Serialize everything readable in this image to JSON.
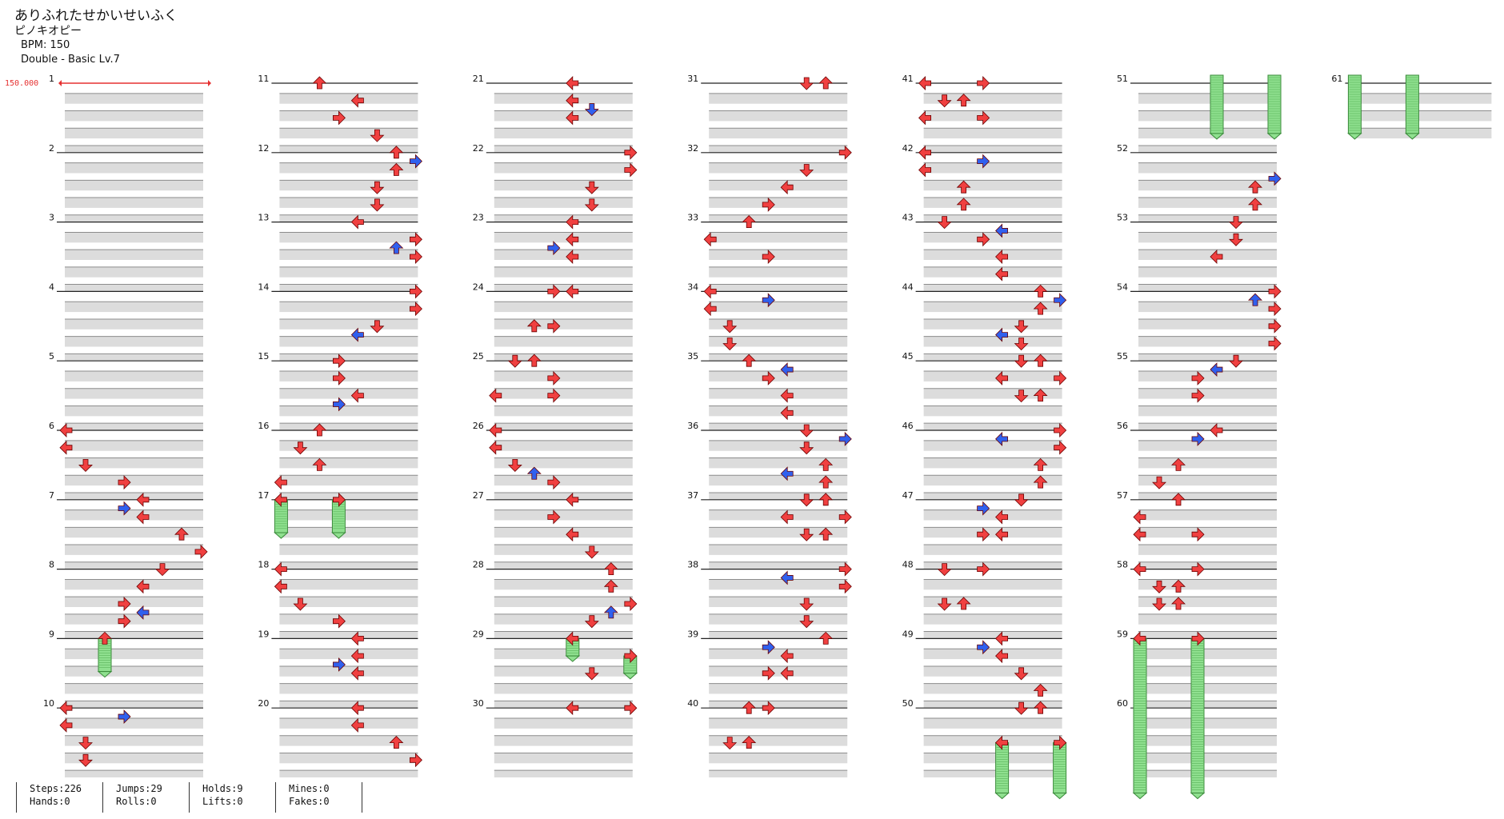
{
  "header": {
    "title": "ありふれたせかいせいふく",
    "artist": "ピノキオピー",
    "bpm": "BPM: 150",
    "difficulty": "Double - Basic  Lv.7",
    "bpm_marker": "150.000"
  },
  "colors": {
    "red_arrow": "#f04040",
    "blue_arrow": "#3060ee",
    "hold_green": "#8fe08f",
    "band_gray": "#dcdcdc",
    "bpm_marker": "#e53030"
  },
  "measure_count": 61,
  "measure_labels": [
    "1",
    "2",
    "3",
    "4",
    "5",
    "6",
    "7",
    "8",
    "9",
    "10",
    "11",
    "12",
    "13",
    "14",
    "15",
    "16",
    "17",
    "18",
    "19",
    "20",
    "21",
    "22",
    "23",
    "24",
    "25",
    "26",
    "27",
    "28",
    "29",
    "30",
    "31",
    "32",
    "33",
    "34",
    "35",
    "36",
    "37",
    "38",
    "39",
    "40",
    "41",
    "42",
    "43",
    "44",
    "45",
    "46",
    "47",
    "48",
    "49",
    "50",
    "51",
    "52",
    "53",
    "54",
    "55",
    "56",
    "57",
    "58",
    "59",
    "60",
    "61"
  ],
  "notes": [
    {
      "m": 6,
      "b": 0,
      "l": 0,
      "c": "r"
    },
    {
      "m": 6,
      "b": 1,
      "l": 0,
      "c": "r"
    },
    {
      "m": 6,
      "b": 2,
      "l": 1,
      "c": "r"
    },
    {
      "m": 6,
      "b": 3,
      "l": 3,
      "c": "r"
    },
    {
      "m": 7,
      "b": 0,
      "l": 4,
      "c": "r"
    },
    {
      "m": 7,
      "b": 0.5,
      "l": 3,
      "c": "b"
    },
    {
      "m": 7,
      "b": 1,
      "l": 4,
      "c": "r"
    },
    {
      "m": 7,
      "b": 2,
      "l": 6,
      "c": "r"
    },
    {
      "m": 7,
      "b": 3,
      "l": 7,
      "c": "r"
    },
    {
      "m": 8,
      "b": 0,
      "l": 5,
      "c": "r"
    },
    {
      "m": 8,
      "b": 1,
      "l": 4,
      "c": "r"
    },
    {
      "m": 8,
      "b": 2,
      "l": 3,
      "c": "r"
    },
    {
      "m": 8,
      "b": 2.5,
      "l": 4,
      "c": "b"
    },
    {
      "m": 8,
      "b": 3,
      "l": 3,
      "c": "r"
    },
    {
      "m": 9,
      "b": 0,
      "l": 2,
      "c": "r",
      "hold": 1.9
    },
    {
      "m": 10,
      "b": 0,
      "l": 0,
      "c": "r"
    },
    {
      "m": 10,
      "b": 0.5,
      "l": 3,
      "c": "b"
    },
    {
      "m": 10,
      "b": 1,
      "l": 0,
      "c": "r"
    },
    {
      "m": 10,
      "b": 2,
      "l": 1,
      "c": "r"
    },
    {
      "m": 10,
      "b": 3,
      "l": 1,
      "c": "r"
    },
    {
      "m": 11,
      "b": 0,
      "l": 2,
      "c": "r"
    },
    {
      "m": 11,
      "b": 1,
      "l": 4,
      "c": "r"
    },
    {
      "m": 11,
      "b": 2,
      "l": 3,
      "c": "r"
    },
    {
      "m": 11,
      "b": 3,
      "l": 5,
      "c": "r"
    },
    {
      "m": 12,
      "b": 0,
      "l": 6,
      "c": "r"
    },
    {
      "m": 12,
      "b": 0.5,
      "l": 7,
      "c": "b"
    },
    {
      "m": 12,
      "b": 1,
      "l": 6,
      "c": "r"
    },
    {
      "m": 12,
      "b": 2,
      "l": 5,
      "c": "r"
    },
    {
      "m": 12,
      "b": 3,
      "l": 5,
      "c": "r"
    },
    {
      "m": 13,
      "b": 0,
      "l": 4,
      "c": "r"
    },
    {
      "m": 13,
      "b": 1,
      "l": 7,
      "c": "r"
    },
    {
      "m": 13,
      "b": 1.5,
      "l": 6,
      "c": "b"
    },
    {
      "m": 13,
      "b": 2,
      "l": 7,
      "c": "r"
    },
    {
      "m": 14,
      "b": 0,
      "l": 7,
      "c": "r"
    },
    {
      "m": 14,
      "b": 1,
      "l": 7,
      "c": "r"
    },
    {
      "m": 14,
      "b": 2,
      "l": 5,
      "c": "r"
    },
    {
      "m": 14,
      "b": 2.5,
      "l": 4,
      "c": "b"
    },
    {
      "m": 15,
      "b": 0,
      "l": 3,
      "c": "r"
    },
    {
      "m": 15,
      "b": 1,
      "l": 3,
      "c": "r"
    },
    {
      "m": 15,
      "b": 2,
      "l": 4,
      "c": "r"
    },
    {
      "m": 15,
      "b": 2.5,
      "l": 3,
      "c": "b"
    },
    {
      "m": 16,
      "b": 0,
      "l": 2,
      "c": "r"
    },
    {
      "m": 16,
      "b": 1,
      "l": 1,
      "c": "r"
    },
    {
      "m": 16,
      "b": 2,
      "l": 2,
      "c": "r"
    },
    {
      "m": 16,
      "b": 3,
      "l": 0,
      "c": "r"
    },
    {
      "m": 17,
      "b": 0,
      "l": 0,
      "c": "r",
      "hold": 1.9
    },
    {
      "m": 17,
      "b": 0,
      "l": 3,
      "c": "r",
      "hold": 1.9
    },
    {
      "m": 18,
      "b": 0,
      "l": 0,
      "c": "r"
    },
    {
      "m": 18,
      "b": 1,
      "l": 0,
      "c": "r"
    },
    {
      "m": 18,
      "b": 2,
      "l": 1,
      "c": "r"
    },
    {
      "m": 18,
      "b": 3,
      "l": 3,
      "c": "r"
    },
    {
      "m": 19,
      "b": 0,
      "l": 4,
      "c": "r"
    },
    {
      "m": 19,
      "b": 1,
      "l": 4,
      "c": "r"
    },
    {
      "m": 19,
      "b": 1.5,
      "l": 3,
      "c": "b"
    },
    {
      "m": 19,
      "b": 2,
      "l": 4,
      "c": "r"
    },
    {
      "m": 20,
      "b": 0,
      "l": 4,
      "c": "r"
    },
    {
      "m": 20,
      "b": 1,
      "l": 4,
      "c": "r"
    },
    {
      "m": 20,
      "b": 2,
      "l": 6,
      "c": "r"
    },
    {
      "m": 20,
      "b": 3,
      "l": 7,
      "c": "r"
    },
    {
      "m": 21,
      "b": 0,
      "l": 4,
      "c": "r"
    },
    {
      "m": 21,
      "b": 1,
      "l": 4,
      "c": "r"
    },
    {
      "m": 21,
      "b": 1.5,
      "l": 5,
      "c": "b"
    },
    {
      "m": 21,
      "b": 2,
      "l": 4,
      "c": "r"
    },
    {
      "m": 22,
      "b": 0,
      "l": 7,
      "c": "r"
    },
    {
      "m": 22,
      "b": 1,
      "l": 7,
      "c": "r"
    },
    {
      "m": 22,
      "b": 2,
      "l": 5,
      "c": "r"
    },
    {
      "m": 22,
      "b": 3,
      "l": 5,
      "c": "r"
    },
    {
      "m": 23,
      "b": 0,
      "l": 4,
      "c": "r"
    },
    {
      "m": 23,
      "b": 1,
      "l": 4,
      "c": "r"
    },
    {
      "m": 23,
      "b": 1.5,
      "l": 3,
      "c": "b"
    },
    {
      "m": 23,
      "b": 2,
      "l": 4,
      "c": "r"
    },
    {
      "m": 24,
      "b": 0,
      "l": 3,
      "c": "r"
    },
    {
      "m": 24,
      "b": 0,
      "l": 4,
      "c": "r"
    },
    {
      "m": 24,
      "b": 2,
      "l": 2,
      "c": "r"
    },
    {
      "m": 24,
      "b": 2,
      "l": 3,
      "c": "r"
    },
    {
      "m": 25,
      "b": 0,
      "l": 1,
      "c": "r"
    },
    {
      "m": 25,
      "b": 0,
      "l": 2,
      "c": "r"
    },
    {
      "m": 25,
      "b": 1,
      "l": 3,
      "c": "r"
    },
    {
      "m": 25,
      "b": 2,
      "l": 0,
      "c": "r"
    },
    {
      "m": 25,
      "b": 2,
      "l": 3,
      "c": "r"
    },
    {
      "m": 26,
      "b": 0,
      "l": 0,
      "c": "r"
    },
    {
      "m": 26,
      "b": 1,
      "l": 0,
      "c": "r"
    },
    {
      "m": 26,
      "b": 2,
      "l": 1,
      "c": "r"
    },
    {
      "m": 26,
      "b": 2.5,
      "l": 2,
      "c": "b"
    },
    {
      "m": 26,
      "b": 3,
      "l": 3,
      "c": "r"
    },
    {
      "m": 27,
      "b": 0,
      "l": 4,
      "c": "r"
    },
    {
      "m": 27,
      "b": 1,
      "l": 3,
      "c": "r"
    },
    {
      "m": 27,
      "b": 2,
      "l": 4,
      "c": "r"
    },
    {
      "m": 27,
      "b": 3,
      "l": 5,
      "c": "r"
    },
    {
      "m": 28,
      "b": 0,
      "l": 6,
      "c": "r"
    },
    {
      "m": 28,
      "b": 1,
      "l": 6,
      "c": "r"
    },
    {
      "m": 28,
      "b": 2,
      "l": 7,
      "c": "r"
    },
    {
      "m": 28,
      "b": 2.5,
      "l": 6,
      "c": "b"
    },
    {
      "m": 28,
      "b": 3,
      "l": 5,
      "c": "r"
    },
    {
      "m": 29,
      "b": 0,
      "l": 4,
      "c": "r",
      "hold": 1.0
    },
    {
      "m": 29,
      "b": 1,
      "l": 7,
      "c": "r",
      "hold": 1.0
    },
    {
      "m": 29,
      "b": 2,
      "l": 5,
      "c": "r"
    },
    {
      "m": 30,
      "b": 0,
      "l": 4,
      "c": "r"
    },
    {
      "m": 30,
      "b": 0,
      "l": 7,
      "c": "r"
    },
    {
      "m": 31,
      "b": 0,
      "l": 5,
      "c": "r"
    },
    {
      "m": 31,
      "b": 0,
      "l": 6,
      "c": "r"
    },
    {
      "m": 32,
      "b": 0,
      "l": 7,
      "c": "r"
    },
    {
      "m": 32,
      "b": 1,
      "l": 5,
      "c": "r"
    },
    {
      "m": 32,
      "b": 2,
      "l": 4,
      "c": "r"
    },
    {
      "m": 32,
      "b": 3,
      "l": 3,
      "c": "r"
    },
    {
      "m": 33,
      "b": 0,
      "l": 2,
      "c": "r"
    },
    {
      "m": 33,
      "b": 1,
      "l": 0,
      "c": "r"
    },
    {
      "m": 33,
      "b": 2,
      "l": 3,
      "c": "r"
    },
    {
      "m": 34,
      "b": 0,
      "l": 0,
      "c": "r"
    },
    {
      "m": 34,
      "b": 0.5,
      "l": 3,
      "c": "b"
    },
    {
      "m": 34,
      "b": 1,
      "l": 0,
      "c": "r"
    },
    {
      "m": 34,
      "b": 2,
      "l": 1,
      "c": "r"
    },
    {
      "m": 34,
      "b": 3,
      "l": 1,
      "c": "r"
    },
    {
      "m": 35,
      "b": 0,
      "l": 2,
      "c": "r"
    },
    {
      "m": 35,
      "b": 0.5,
      "l": 4,
      "c": "b"
    },
    {
      "m": 35,
      "b": 1,
      "l": 3,
      "c": "r"
    },
    {
      "m": 35,
      "b": 2,
      "l": 4,
      "c": "r"
    },
    {
      "m": 35,
      "b": 3,
      "l": 4,
      "c": "r"
    },
    {
      "m": 36,
      "b": 0,
      "l": 5,
      "c": "r"
    },
    {
      "m": 36,
      "b": 0.5,
      "l": 7,
      "c": "b"
    },
    {
      "m": 36,
      "b": 1,
      "l": 5,
      "c": "r"
    },
    {
      "m": 36,
      "b": 2,
      "l": 6,
      "c": "r"
    },
    {
      "m": 36,
      "b": 2.5,
      "l": 4,
      "c": "b"
    },
    {
      "m": 36,
      "b": 3,
      "l": 6,
      "c": "r"
    },
    {
      "m": 37,
      "b": 0,
      "l": 5,
      "c": "r"
    },
    {
      "m": 37,
      "b": 0,
      "l": 6,
      "c": "r"
    },
    {
      "m": 37,
      "b": 1,
      "l": 4,
      "c": "r"
    },
    {
      "m": 37,
      "b": 1,
      "l": 7,
      "c": "r"
    },
    {
      "m": 37,
      "b": 2,
      "l": 5,
      "c": "r"
    },
    {
      "m": 37,
      "b": 2,
      "l": 6,
      "c": "r"
    },
    {
      "m": 38,
      "b": 0,
      "l": 7,
      "c": "r"
    },
    {
      "m": 38,
      "b": 0.5,
      "l": 4,
      "c": "b"
    },
    {
      "m": 38,
      "b": 1,
      "l": 7,
      "c": "r"
    },
    {
      "m": 38,
      "b": 2,
      "l": 5,
      "c": "r"
    },
    {
      "m": 38,
      "b": 3,
      "l": 5,
      "c": "r"
    },
    {
      "m": 39,
      "b": 0,
      "l": 6,
      "c": "r"
    },
    {
      "m": 39,
      "b": 0.5,
      "l": 3,
      "c": "b"
    },
    {
      "m": 39,
      "b": 1,
      "l": 4,
      "c": "r"
    },
    {
      "m": 39,
      "b": 2,
      "l": 3,
      "c": "r"
    },
    {
      "m": 39,
      "b": 2,
      "l": 4,
      "c": "r"
    },
    {
      "m": 40,
      "b": 0,
      "l": 2,
      "c": "r"
    },
    {
      "m": 40,
      "b": 0,
      "l": 3,
      "c": "r"
    },
    {
      "m": 40,
      "b": 2,
      "l": 1,
      "c": "r"
    },
    {
      "m": 40,
      "b": 2,
      "l": 2,
      "c": "r"
    },
    {
      "m": 41,
      "b": 0,
      "l": 0,
      "c": "r"
    },
    {
      "m": 41,
      "b": 0,
      "l": 3,
      "c": "r"
    },
    {
      "m": 41,
      "b": 1,
      "l": 1,
      "c": "r"
    },
    {
      "m": 41,
      "b": 1,
      "l": 2,
      "c": "r"
    },
    {
      "m": 41,
      "b": 2,
      "l": 0,
      "c": "r"
    },
    {
      "m": 41,
      "b": 2,
      "l": 3,
      "c": "r"
    },
    {
      "m": 42,
      "b": 0,
      "l": 0,
      "c": "r"
    },
    {
      "m": 42,
      "b": 0.5,
      "l": 3,
      "c": "b"
    },
    {
      "m": 42,
      "b": 1,
      "l": 0,
      "c": "r"
    },
    {
      "m": 42,
      "b": 2,
      "l": 2,
      "c": "r"
    },
    {
      "m": 42,
      "b": 3,
      "l": 2,
      "c": "r"
    },
    {
      "m": 43,
      "b": 0,
      "l": 1,
      "c": "r"
    },
    {
      "m": 43,
      "b": 0.5,
      "l": 4,
      "c": "b"
    },
    {
      "m": 43,
      "b": 1,
      "l": 3,
      "c": "r"
    },
    {
      "m": 43,
      "b": 2,
      "l": 4,
      "c": "r"
    },
    {
      "m": 43,
      "b": 3,
      "l": 4,
      "c": "r"
    },
    {
      "m": 44,
      "b": 0,
      "l": 6,
      "c": "r"
    },
    {
      "m": 44,
      "b": 0.5,
      "l": 7,
      "c": "b"
    },
    {
      "m": 44,
      "b": 1,
      "l": 6,
      "c": "r"
    },
    {
      "m": 44,
      "b": 2,
      "l": 5,
      "c": "r"
    },
    {
      "m": 44,
      "b": 2.5,
      "l": 4,
      "c": "b"
    },
    {
      "m": 44,
      "b": 3,
      "l": 5,
      "c": "r"
    },
    {
      "m": 45,
      "b": 0,
      "l": 5,
      "c": "r"
    },
    {
      "m": 45,
      "b": 0,
      "l": 6,
      "c": "r"
    },
    {
      "m": 45,
      "b": 1,
      "l": 4,
      "c": "r"
    },
    {
      "m": 45,
      "b": 1,
      "l": 7,
      "c": "r"
    },
    {
      "m": 45,
      "b": 2,
      "l": 5,
      "c": "r"
    },
    {
      "m": 45,
      "b": 2,
      "l": 6,
      "c": "r"
    },
    {
      "m": 46,
      "b": 0,
      "l": 7,
      "c": "r"
    },
    {
      "m": 46,
      "b": 0.5,
      "l": 4,
      "c": "b"
    },
    {
      "m": 46,
      "b": 1,
      "l": 7,
      "c": "r"
    },
    {
      "m": 46,
      "b": 2,
      "l": 6,
      "c": "r"
    },
    {
      "m": 46,
      "b": 3,
      "l": 6,
      "c": "r"
    },
    {
      "m": 47,
      "b": 0,
      "l": 5,
      "c": "r"
    },
    {
      "m": 47,
      "b": 0.5,
      "l": 3,
      "c": "b"
    },
    {
      "m": 47,
      "b": 1,
      "l": 4,
      "c": "r"
    },
    {
      "m": 47,
      "b": 2,
      "l": 3,
      "c": "r"
    },
    {
      "m": 47,
      "b": 2,
      "l": 4,
      "c": "r"
    },
    {
      "m": 48,
      "b": 0,
      "l": 1,
      "c": "r"
    },
    {
      "m": 48,
      "b": 0,
      "l": 3,
      "c": "r"
    },
    {
      "m": 48,
      "b": 2,
      "l": 1,
      "c": "r"
    },
    {
      "m": 48,
      "b": 2,
      "l": 2,
      "c": "r"
    },
    {
      "m": 49,
      "b": 0,
      "l": 4,
      "c": "r"
    },
    {
      "m": 49,
      "b": 0.5,
      "l": 3,
      "c": "b"
    },
    {
      "m": 49,
      "b": 1,
      "l": 4,
      "c": "r"
    },
    {
      "m": 49,
      "b": 2,
      "l": 5,
      "c": "r"
    },
    {
      "m": 49,
      "b": 3,
      "l": 6,
      "c": "r"
    },
    {
      "m": 50,
      "b": 0,
      "l": 5,
      "c": "r"
    },
    {
      "m": 50,
      "b": 0,
      "l": 6,
      "c": "r"
    },
    {
      "m": 50,
      "b": 2,
      "l": 4,
      "c": "r",
      "hold": 2.9
    },
    {
      "m": 50,
      "b": 2,
      "l": 7,
      "c": "r",
      "hold": 2.9
    },
    {
      "m": 51,
      "b": 0,
      "l": 4,
      "c": "g",
      "hold": 2.9
    },
    {
      "m": 51,
      "b": 0,
      "l": 7,
      "c": "g",
      "hold": 2.9
    },
    {
      "m": 52,
      "b": 1.5,
      "l": 7,
      "c": "b"
    },
    {
      "m": 52,
      "b": 2,
      "l": 6,
      "c": "r"
    },
    {
      "m": 52,
      "b": 3,
      "l": 6,
      "c": "r"
    },
    {
      "m": 53,
      "b": 0,
      "l": 5,
      "c": "r"
    },
    {
      "m": 53,
      "b": 1,
      "l": 5,
      "c": "r"
    },
    {
      "m": 53,
      "b": 2,
      "l": 4,
      "c": "r"
    },
    {
      "m": 54,
      "b": 0,
      "l": 7,
      "c": "r"
    },
    {
      "m": 54,
      "b": 0.5,
      "l": 6,
      "c": "b"
    },
    {
      "m": 54,
      "b": 1,
      "l": 7,
      "c": "r"
    },
    {
      "m": 54,
      "b": 2,
      "l": 7,
      "c": "r"
    },
    {
      "m": 54,
      "b": 3,
      "l": 7,
      "c": "r"
    },
    {
      "m": 55,
      "b": 0,
      "l": 5,
      "c": "r"
    },
    {
      "m": 55,
      "b": 0.5,
      "l": 4,
      "c": "b"
    },
    {
      "m": 55,
      "b": 1,
      "l": 3,
      "c": "r"
    },
    {
      "m": 55,
      "b": 2,
      "l": 3,
      "c": "r"
    },
    {
      "m": 56,
      "b": 0,
      "l": 4,
      "c": "r"
    },
    {
      "m": 56,
      "b": 0.5,
      "l": 3,
      "c": "b"
    },
    {
      "m": 56,
      "b": 2,
      "l": 2,
      "c": "r"
    },
    {
      "m": 56,
      "b": 3,
      "l": 1,
      "c": "r"
    },
    {
      "m": 57,
      "b": 0,
      "l": 2,
      "c": "r"
    },
    {
      "m": 57,
      "b": 1,
      "l": 0,
      "c": "r"
    },
    {
      "m": 57,
      "b": 2,
      "l": 0,
      "c": "r"
    },
    {
      "m": 57,
      "b": 2,
      "l": 3,
      "c": "r"
    },
    {
      "m": 58,
      "b": 0,
      "l": 0,
      "c": "r"
    },
    {
      "m": 58,
      "b": 0,
      "l": 3,
      "c": "r"
    },
    {
      "m": 58,
      "b": 1,
      "l": 1,
      "c": "r"
    },
    {
      "m": 58,
      "b": 1,
      "l": 2,
      "c": "r"
    },
    {
      "m": 58,
      "b": 2,
      "l": 1,
      "c": "r"
    },
    {
      "m": 58,
      "b": 2,
      "l": 2,
      "c": "r"
    },
    {
      "m": 59,
      "b": 0,
      "l": 0,
      "c": "r",
      "hold": 8.9
    },
    {
      "m": 59,
      "b": 0,
      "l": 3,
      "c": "r",
      "hold": 8.9
    },
    {
      "m": 61,
      "b": 0,
      "l": 0,
      "c": "g",
      "hold": 2.9
    },
    {
      "m": 61,
      "b": 0,
      "l": 3,
      "c": "g",
      "hold": 2.9
    }
  ],
  "stats": [
    {
      "top": "Steps:226",
      "bottom": "Hands:0"
    },
    {
      "top": "Jumps:29",
      "bottom": "Rolls:0"
    },
    {
      "top": "Holds:9",
      "bottom": "Lifts:0"
    },
    {
      "top": "Mines:0",
      "bottom": "Fakes:0"
    }
  ]
}
